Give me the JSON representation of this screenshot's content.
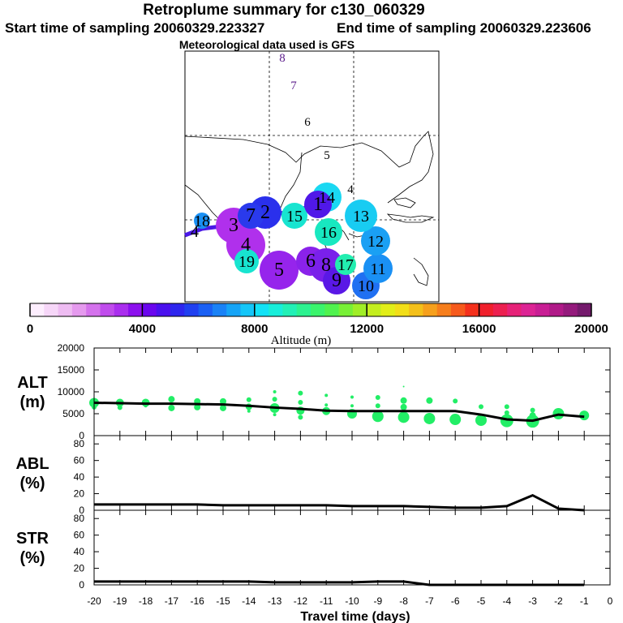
{
  "header": {
    "title": "Retroplume summary for c130_060329",
    "start_sampling": "Start time of sampling 20060329.223327",
    "end_sampling": "End time of sampling 20060329.223606",
    "met_data": "Meteorological data used is GFS"
  },
  "colorbar": {
    "title": "Altitude (m)",
    "tick_labels": [
      "0",
      "4000",
      "8000",
      "12000",
      "16000",
      "20000"
    ],
    "colors": [
      "#fdeefe",
      "#f6d6f8",
      "#eebcf2",
      "#e59aee",
      "#d472ec",
      "#c04cec",
      "#aa2eee",
      "#8c10ee",
      "#6a06ee",
      "#4a10ee",
      "#2e26ee",
      "#2040f0",
      "#1a60f4",
      "#1a82f6",
      "#16a4f6",
      "#14c6f8",
      "#12e2f6",
      "#18eeda",
      "#22f0b6",
      "#2cf290",
      "#3af46c",
      "#50f24e",
      "#78f036",
      "#a0ee26",
      "#c4ee1e",
      "#e2ee18",
      "#f2de18",
      "#f4c01a",
      "#f6a01c",
      "#f67e1c",
      "#f65a1c",
      "#f4301c",
      "#f0202c",
      "#ec2050",
      "#e62278",
      "#dc2494",
      "#c81e94",
      "#b01a88",
      "#941a7c",
      "#741a6c"
    ]
  },
  "map": {
    "day_labels": [
      {
        "text": "8"
      },
      {
        "text": "7"
      },
      {
        "text": "6"
      },
      {
        "text": "5"
      },
      {
        "text": "4"
      },
      {
        "text": "3"
      }
    ],
    "plume_circles": [
      {
        "label": "1",
        "color": "#5018e8",
        "alt_m": 3000
      },
      {
        "label": "2",
        "color": "#2a30ec",
        "alt_m": 4000
      },
      {
        "label": "3",
        "color": "#b030ec",
        "alt_m": 2500
      },
      {
        "label": "4",
        "color": "#b030ec",
        "alt_m": 2500
      },
      {
        "label": "5",
        "color": "#9624ec",
        "alt_m": 3000
      },
      {
        "label": "6",
        "color": "#8a22ea",
        "alt_m": 3200
      },
      {
        "label": "7",
        "color": "#2a3aec",
        "alt_m": 4500
      },
      {
        "label": "8",
        "color": "#7a20ea",
        "alt_m": 3300
      },
      {
        "label": "9",
        "color": "#5a18e6",
        "alt_m": 3800
      },
      {
        "label": "10",
        "color": "#2070f2",
        "alt_m": 5000
      },
      {
        "label": "11",
        "color": "#1a90f4",
        "alt_m": 5500
      },
      {
        "label": "12",
        "color": "#1aa0f4",
        "alt_m": 5800
      },
      {
        "label": "13",
        "color": "#18ccf2",
        "alt_m": 6500
      },
      {
        "label": "14",
        "color": "#1ad8f2",
        "alt_m": 7000
      },
      {
        "label": "15",
        "color": "#18e4d0",
        "alt_m": 7500
      },
      {
        "label": "16",
        "color": "#18e8c0",
        "alt_m": 8000
      },
      {
        "label": "17",
        "color": "#22eeb0",
        "alt_m": 8500
      },
      {
        "label": "18",
        "color": "#1a90f4",
        "alt_m": 5500
      },
      {
        "label": "19",
        "color": "#18e4d0",
        "alt_m": 7500
      }
    ]
  },
  "chart_data": [
    {
      "type": "scatter",
      "ylabel": "ALT (m)",
      "ylabel_lines": [
        "ALT",
        "(m)"
      ],
      "ylim": [
        0,
        20000
      ],
      "yticks": [
        "0",
        "5000",
        "10000",
        "15000",
        "20000"
      ],
      "line_series": {
        "name": "mean altitude",
        "x": [
          -20,
          -19,
          -18,
          -17,
          -16,
          -15,
          -14,
          -13,
          -12,
          -11,
          -10,
          -9,
          -8,
          -7,
          -6,
          -5,
          -4,
          -3,
          -2,
          -1
        ],
        "y": [
          7500,
          7400,
          7300,
          7300,
          7200,
          7100,
          6800,
          6400,
          6100,
          5700,
          5600,
          5600,
          5600,
          5600,
          5600,
          4800,
          3700,
          3400,
          4800,
          4300
        ]
      },
      "dots": [
        {
          "x": -20,
          "y": 7500,
          "size": 6
        },
        {
          "x": -20,
          "y": 6500,
          "size": 3
        },
        {
          "x": -19,
          "y": 7500,
          "size": 5
        },
        {
          "x": -19,
          "y": 6400,
          "size": 3
        },
        {
          "x": -18,
          "y": 7500,
          "size": 5
        },
        {
          "x": -18,
          "y": 6800,
          "size": 2
        },
        {
          "x": -17,
          "y": 8300,
          "size": 4
        },
        {
          "x": -17,
          "y": 6300,
          "size": 4
        },
        {
          "x": -16,
          "y": 7800,
          "size": 4
        },
        {
          "x": -16,
          "y": 6500,
          "size": 4
        },
        {
          "x": -15,
          "y": 7800,
          "size": 4
        },
        {
          "x": -15,
          "y": 6300,
          "size": 4
        },
        {
          "x": -14,
          "y": 8200,
          "size": 3
        },
        {
          "x": -14,
          "y": 6600,
          "size": 4
        },
        {
          "x": -14,
          "y": 5600,
          "size": 2
        },
        {
          "x": -13,
          "y": 10000,
          "size": 2
        },
        {
          "x": -13,
          "y": 8300,
          "size": 3
        },
        {
          "x": -13,
          "y": 6300,
          "size": 6
        },
        {
          "x": -13,
          "y": 4800,
          "size": 2
        },
        {
          "x": -12,
          "y": 9700,
          "size": 3
        },
        {
          "x": -12,
          "y": 7600,
          "size": 3
        },
        {
          "x": -12,
          "y": 5700,
          "size": 5
        },
        {
          "x": -12,
          "y": 4200,
          "size": 3
        },
        {
          "x": -11,
          "y": 9200,
          "size": 2
        },
        {
          "x": -11,
          "y": 7000,
          "size": 2
        },
        {
          "x": -11,
          "y": 5600,
          "size": 5
        },
        {
          "x": -10,
          "y": 8800,
          "size": 2
        },
        {
          "x": -10,
          "y": 6800,
          "size": 2
        },
        {
          "x": -10,
          "y": 5000,
          "size": 6
        },
        {
          "x": -9,
          "y": 8700,
          "size": 3
        },
        {
          "x": -9,
          "y": 6800,
          "size": 3
        },
        {
          "x": -9,
          "y": 4400,
          "size": 7
        },
        {
          "x": -8,
          "y": 11200,
          "size": 1
        },
        {
          "x": -8,
          "y": 8000,
          "size": 4
        },
        {
          "x": -8,
          "y": 6500,
          "size": 4
        },
        {
          "x": -8,
          "y": 4200,
          "size": 7
        },
        {
          "x": -7,
          "y": 8000,
          "size": 4
        },
        {
          "x": -7,
          "y": 3900,
          "size": 7
        },
        {
          "x": -6,
          "y": 7900,
          "size": 3
        },
        {
          "x": -6,
          "y": 3700,
          "size": 7
        },
        {
          "x": -5,
          "y": 6600,
          "size": 3
        },
        {
          "x": -5,
          "y": 3500,
          "size": 7
        },
        {
          "x": -4,
          "y": 6600,
          "size": 3
        },
        {
          "x": -4,
          "y": 5200,
          "size": 3
        },
        {
          "x": -4,
          "y": 3400,
          "size": 8
        },
        {
          "x": -3,
          "y": 5800,
          "size": 3
        },
        {
          "x": -3,
          "y": 4600,
          "size": 4
        },
        {
          "x": -3,
          "y": 3300,
          "size": 8
        },
        {
          "x": -2,
          "y": 5000,
          "size": 7
        },
        {
          "x": -1,
          "y": 4600,
          "size": 6
        }
      ],
      "xlim": [
        -20,
        0
      ],
      "xticks": [
        "-20",
        "-19",
        "-18",
        "-17",
        "-16",
        "-15",
        "-14",
        "-13",
        "-12",
        "-11",
        "-10",
        "-9",
        "-8",
        "-7",
        "-6",
        "-5",
        "-4",
        "-3",
        "-2",
        "-1",
        "0"
      ]
    },
    {
      "type": "line",
      "ylabel": "ABL (%)",
      "ylabel_lines": [
        "ABL",
        "(%)"
      ],
      "ylim": [
        0,
        90
      ],
      "yticks": [
        "0",
        "20",
        "40",
        "60",
        "80"
      ],
      "x": [
        -20,
        -19,
        -18,
        -17,
        -16,
        -15,
        -14,
        -13,
        -12,
        -11,
        -10,
        -9,
        -8,
        -7,
        -6,
        -5,
        -4,
        -3,
        -2,
        -1
      ],
      "y": [
        7,
        7,
        7,
        7,
        7,
        6,
        6,
        6,
        6,
        6,
        5,
        5,
        5,
        4,
        3,
        3,
        5,
        18,
        2,
        0
      ]
    },
    {
      "type": "line",
      "ylabel": "STR (%)",
      "ylabel_lines": [
        "STR",
        "(%)"
      ],
      "ylim": [
        0,
        90
      ],
      "yticks": [
        "0",
        "20",
        "40",
        "60",
        "80"
      ],
      "x": [
        -20,
        -19,
        -18,
        -17,
        -16,
        -15,
        -14,
        -13,
        -12,
        -11,
        -10,
        -9,
        -8,
        -7,
        -6,
        -5,
        -4,
        -3,
        -2,
        -1
      ],
      "y": [
        4,
        4,
        4,
        4,
        4,
        4,
        4,
        3,
        3,
        3,
        3,
        4,
        4,
        0,
        0,
        0,
        0,
        0,
        0,
        0
      ],
      "xlabel": "Travel time (days)"
    }
  ]
}
